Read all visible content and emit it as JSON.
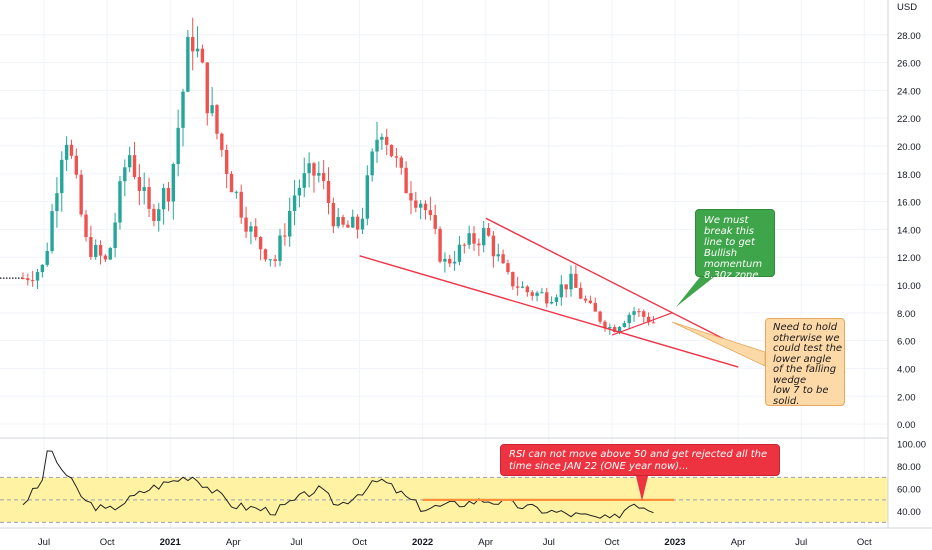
{
  "currency": "USD",
  "price_axis": {
    "ticks": [
      "28.00",
      "26.00",
      "24.00",
      "22.00",
      "20.00",
      "18.00",
      "16.00",
      "14.00",
      "12.00",
      "10.00",
      "8.00",
      "6.00",
      "4.00",
      "2.00",
      "0.00"
    ],
    "min": -1,
    "max": 30.5
  },
  "rsi_axis": {
    "ticks": [
      "100.00",
      "80.00",
      "60.00",
      "40.00"
    ],
    "min": 25,
    "max": 105,
    "band_upper": 70,
    "band_mid": 50,
    "band_lower": 30
  },
  "time_axis": {
    "labels": [
      "Jul",
      "Oct",
      "2021",
      "Apr",
      "Jul",
      "Oct",
      "2022",
      "Apr",
      "Jul",
      "Oct",
      "2023",
      "Apr",
      "Jul",
      "Oct"
    ],
    "bold": [
      "2021",
      "2022",
      "2023"
    ]
  },
  "colors": {
    "up": "#26a69a",
    "down": "#ef5350",
    "wedge": "#ef3347",
    "rsi_band": "#fff3a3",
    "rsi_line": "#222222",
    "rsi_level": "#ff8f3a",
    "green_callout": "#3fa54a",
    "orange_callout": "#fdd9a8",
    "red_callout": "#ee3340"
  },
  "annotations": {
    "green": {
      "lines": [
        "We must",
        "break this",
        "line to get",
        "Bullish",
        "momentum",
        "8.30z zone"
      ]
    },
    "orange": {
      "lines": [
        "Need to hold",
        "otherwise we",
        "could test the",
        "lower angle",
        "of the falling",
        "wedge",
        "low 7 to be",
        "solid."
      ]
    },
    "red": {
      "text": "RSI can not move above 50 and get rejected all the time since JAN 22 (ONE year now)..."
    }
  },
  "chart_data": {
    "type": "candlestick",
    "price_unit": "USD",
    "period": "weekly",
    "time_range": [
      "2020-06",
      "2022-12"
    ],
    "price_key_points": [
      {
        "x": "2020-06",
        "close": 10.5
      },
      {
        "x": "2020-07",
        "close": 11.3
      },
      {
        "x": "2020-08",
        "close": 21.5
      },
      {
        "x": "2020-09",
        "close": 13.0
      },
      {
        "x": "2020-10",
        "close": 11.5
      },
      {
        "x": "2020-11",
        "close": 19.8
      },
      {
        "x": "2020-12",
        "close": 15.0
      },
      {
        "x": "2021-01",
        "close": 17.2
      },
      {
        "x": "2021-02",
        "close": 28.4
      },
      {
        "x": "2021-03",
        "close": 22.0
      },
      {
        "x": "2021-04",
        "close": 17.0
      },
      {
        "x": "2021-05",
        "close": 13.2
      },
      {
        "x": "2021-06",
        "close": 11.8
      },
      {
        "x": "2021-07",
        "close": 17.0
      },
      {
        "x": "2021-08",
        "close": 18.2
      },
      {
        "x": "2021-09",
        "close": 14.0
      },
      {
        "x": "2021-10",
        "close": 14.2
      },
      {
        "x": "2021-11",
        "close": 22.0
      },
      {
        "x": "2021-12",
        "close": 17.5
      },
      {
        "x": "2022-01",
        "close": 16.0
      },
      {
        "x": "2022-02",
        "close": 11.5
      },
      {
        "x": "2022-03",
        "close": 12.8
      },
      {
        "x": "2022-04",
        "close": 13.8
      },
      {
        "x": "2022-05",
        "close": 10.5
      },
      {
        "x": "2022-06",
        "close": 9.5
      },
      {
        "x": "2022-07",
        "close": 9.2
      },
      {
        "x": "2022-08",
        "close": 10.3
      },
      {
        "x": "2022-09",
        "close": 8.2
      },
      {
        "x": "2022-10",
        "close": 6.8
      },
      {
        "x": "2022-11",
        "close": 8.2
      },
      {
        "x": "2022-12",
        "close": 7.3
      }
    ],
    "wedge_upper_line": [
      {
        "x": "2022-04",
        "y": 14.8
      },
      {
        "x": "2023-04",
        "y": 5.6
      }
    ],
    "wedge_lower_line": [
      {
        "x": "2021-10",
        "y": 12.1
      },
      {
        "x": "2023-04",
        "y": 4.1
      }
    ],
    "rsi_key_points": [
      {
        "x": "2020-06",
        "y": 47
      },
      {
        "x": "2020-07",
        "y": 68
      },
      {
        "x": "2020-07",
        "y": 97
      },
      {
        "x": "2020-09",
        "y": 48
      },
      {
        "x": "2020-10",
        "y": 40
      },
      {
        "x": "2020-12",
        "y": 60
      },
      {
        "x": "2021-02",
        "y": 72
      },
      {
        "x": "2021-04",
        "y": 45
      },
      {
        "x": "2021-06",
        "y": 40
      },
      {
        "x": "2021-08",
        "y": 60
      },
      {
        "x": "2021-09",
        "y": 45
      },
      {
        "x": "2021-11",
        "y": 68
      },
      {
        "x": "2022-01",
        "y": 42
      },
      {
        "x": "2022-04",
        "y": 50
      },
      {
        "x": "2022-07",
        "y": 40
      },
      {
        "x": "2022-10",
        "y": 32
      },
      {
        "x": "2022-11",
        "y": 48
      },
      {
        "x": "2022-12",
        "y": 41
      }
    ],
    "rsi_resistance": {
      "level": 50,
      "from": "2022-01",
      "to": "2022-12"
    }
  }
}
